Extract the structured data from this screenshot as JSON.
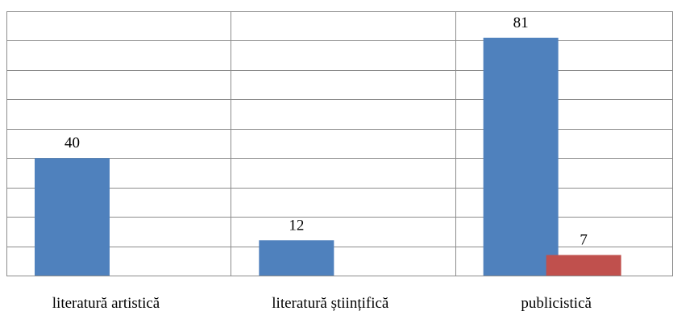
{
  "chart_data": {
    "type": "bar",
    "categories": [
      "literatură artistică",
      "literatură științifică",
      "publicistică"
    ],
    "series": [
      {
        "values": [
          40,
          12,
          81
        ],
        "color": "#4F81BD"
      },
      {
        "values": [
          null,
          null,
          7
        ],
        "color": "#C0504D"
      }
    ],
    "ylim": [
      0,
      90
    ],
    "y_gridline_step": 10,
    "grid": true,
    "vertical_separators": true,
    "data_labels": true,
    "legend": "none"
  }
}
